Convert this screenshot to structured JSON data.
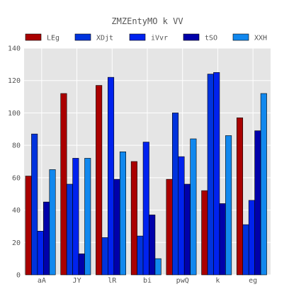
{
  "chart_data": {
    "type": "bar",
    "title": "ZMZEntyMO k VV",
    "xlabel": "",
    "ylabel": "",
    "categories": [
      "aA",
      "JY",
      "lR",
      "bi",
      "pwQ",
      "k",
      "eg"
    ],
    "ylim": [
      0,
      140
    ],
    "yticks": [
      0,
      20,
      40,
      60,
      80,
      100,
      120,
      140
    ],
    "grid": true,
    "legend_position": "top",
    "series": [
      {
        "name": "LEg",
        "color": "#aa0000",
        "values": [
          61,
          112,
          117,
          70,
          59,
          52,
          97
        ]
      },
      {
        "name": "XDjt",
        "color": "#0033dd",
        "values": [
          87,
          56,
          23,
          24,
          100,
          124,
          31
        ]
      },
      {
        "name": "iVvr",
        "color": "#0022ee",
        "values": [
          27,
          72,
          122,
          82,
          73,
          125,
          46
        ]
      },
      {
        "name": "tSO",
        "color": "#0000aa",
        "values": [
          45,
          13,
          59,
          37,
          56,
          44,
          89
        ]
      },
      {
        "name": "XXH",
        "color": "#1188ee",
        "values": [
          65,
          72,
          76,
          10,
          84,
          86,
          112
        ]
      }
    ]
  }
}
